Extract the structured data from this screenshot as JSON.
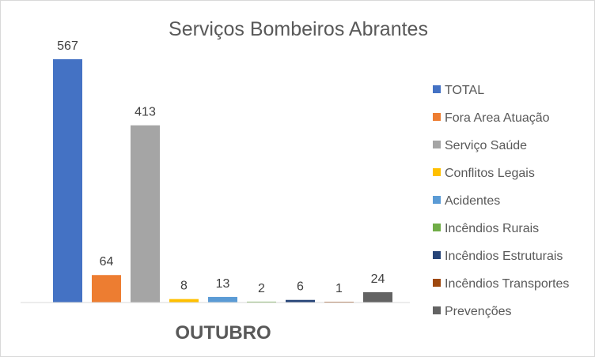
{
  "chart_data": {
    "type": "bar",
    "title": "Serviços Bombeiros Abrantes",
    "categories": [
      "OUTUBRO"
    ],
    "series": [
      {
        "name": "TOTAL",
        "values": [
          567
        ],
        "color": "#4472C4"
      },
      {
        "name": "Fora Area Atuação",
        "values": [
          64
        ],
        "color": "#ED7D31"
      },
      {
        "name": "Serviço Saúde",
        "values": [
          413
        ],
        "color": "#A5A5A5"
      },
      {
        "name": "Conflitos Legais",
        "values": [
          8
        ],
        "color": "#FFC000"
      },
      {
        "name": "Acidentes",
        "values": [
          13
        ],
        "color": "#5B9BD5"
      },
      {
        "name": "Incêndios Rurais",
        "values": [
          2
        ],
        "color": "#70AD47"
      },
      {
        "name": "Incêndios Estruturais",
        "values": [
          6
        ],
        "color": "#264478"
      },
      {
        "name": "Incêndios Transportes",
        "values": [
          1
        ],
        "color": "#9E480E"
      },
      {
        "name": "Prevenções",
        "values": [
          24
        ],
        "color": "#636363"
      }
    ],
    "xlabel": "",
    "ylabel": "",
    "ylim": [
      0,
      600
    ],
    "grid": false,
    "legend_position": "right",
    "data_labels": true
  }
}
